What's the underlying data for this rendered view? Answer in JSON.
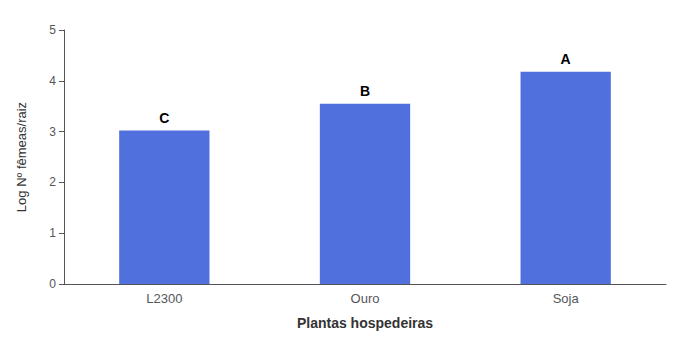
{
  "chart_data": {
    "type": "bar",
    "categories": [
      "L2300",
      "Ouro",
      "Soja"
    ],
    "values": [
      3.02,
      3.55,
      4.18
    ],
    "annotations": [
      "C",
      "B",
      "A"
    ],
    "xlabel": "Plantas hospedeiras",
    "ylabel": "Log Nº fêmeas/raiz",
    "ylim": [
      0,
      5
    ],
    "yticks": [
      0,
      1,
      2,
      3,
      4,
      5
    ],
    "grid": false
  }
}
